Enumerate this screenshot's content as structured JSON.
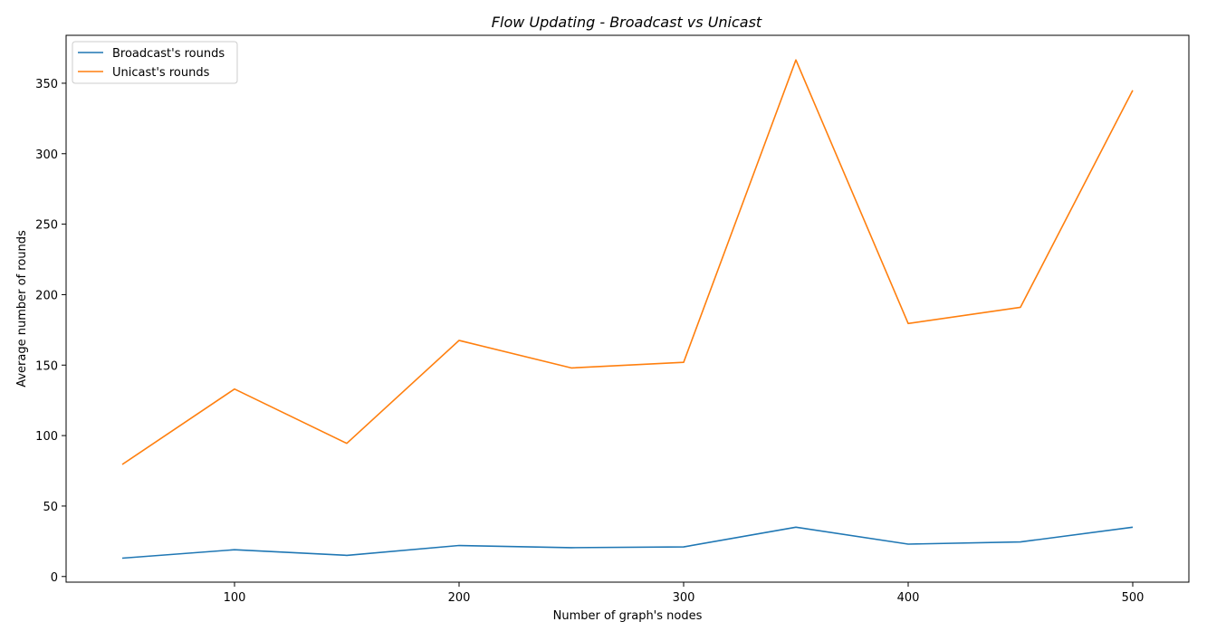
{
  "chart_data": {
    "type": "line",
    "title": "Flow Updating - Broadcast vs Unicast",
    "xlabel": "Number of graph's nodes",
    "ylabel": "Average number of rounds",
    "x": [
      50,
      100,
      150,
      200,
      250,
      300,
      350,
      400,
      450,
      500
    ],
    "xlim": [
      25,
      525
    ],
    "ylim": [
      -4,
      384
    ],
    "xticks": [
      100,
      200,
      300,
      400,
      500
    ],
    "yticks": [
      0,
      50,
      100,
      150,
      200,
      250,
      300,
      350
    ],
    "grid": false,
    "legend_position": "top-left",
    "series": [
      {
        "name": "Broadcast's rounds",
        "color": "#1f77b4",
        "values": [
          13,
          19,
          15,
          22,
          20.5,
          21,
          35,
          23,
          24.5,
          35
        ]
      },
      {
        "name": "Unicast's rounds",
        "color": "#ff7f0e",
        "values": [
          79.5,
          133,
          94.5,
          167.5,
          148,
          152,
          366.5,
          179.5,
          191,
          345
        ]
      }
    ]
  }
}
